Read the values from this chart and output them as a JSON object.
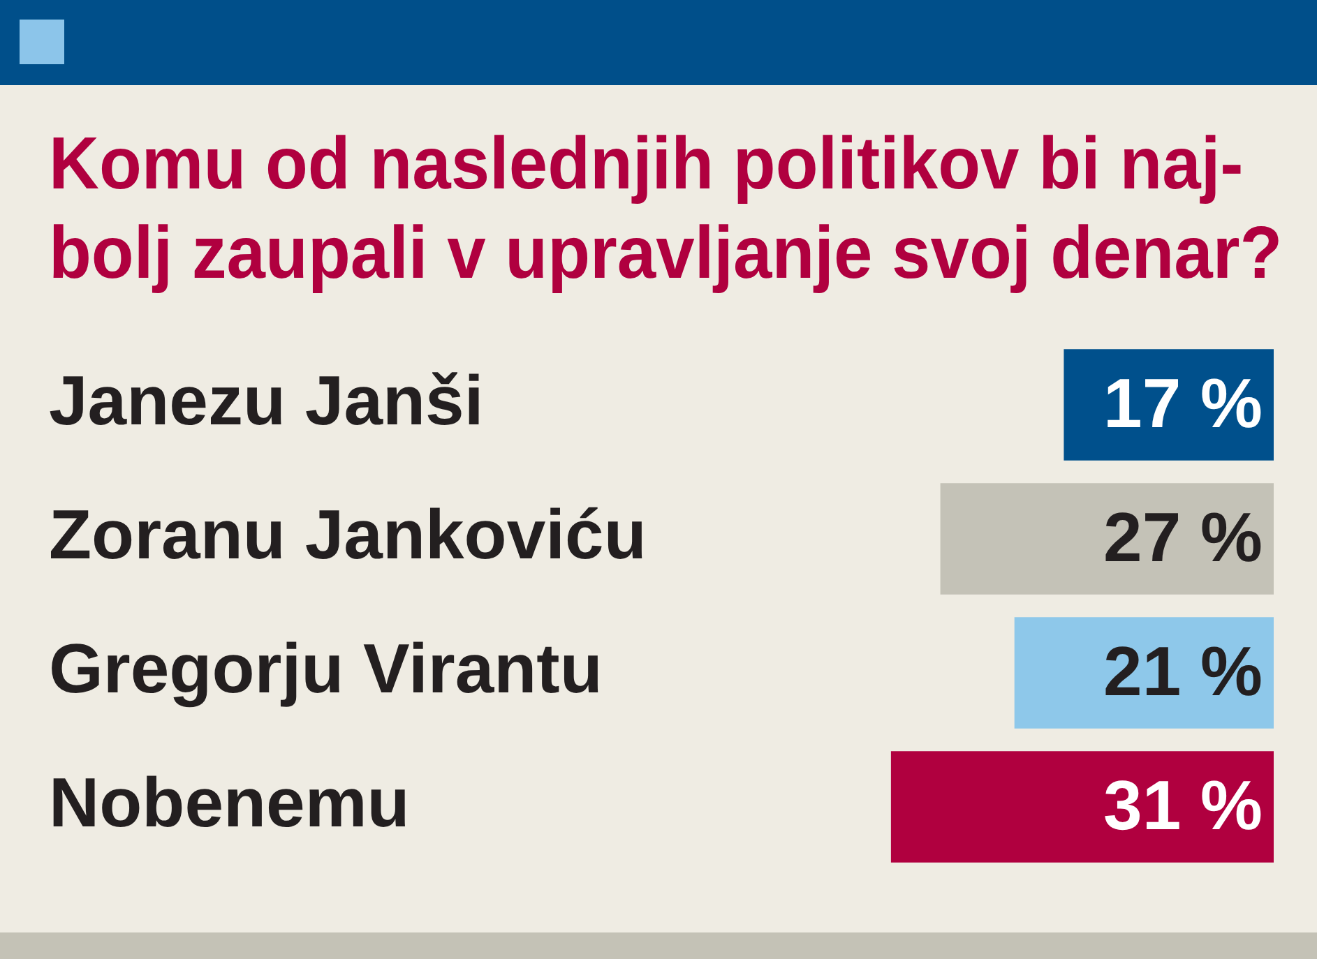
{
  "chart_data": {
    "type": "bar",
    "orientation": "horizontal",
    "title": "Komu od naslednjih politikov bi naj-\nbolj zaupali v upravljanje svoj denar?",
    "categories": [
      "Janezu Janši",
      "Zoranu Jankoviću",
      "Gregorju Virantu",
      "Nobenemu"
    ],
    "values": [
      17,
      27,
      21,
      31
    ],
    "colors": [
      "#00508c",
      "#c4c2b7",
      "#8ec8ea",
      "#b0003f"
    ],
    "value_labels": [
      "17 %",
      "27 %",
      "21 %",
      "31 %"
    ]
  }
}
